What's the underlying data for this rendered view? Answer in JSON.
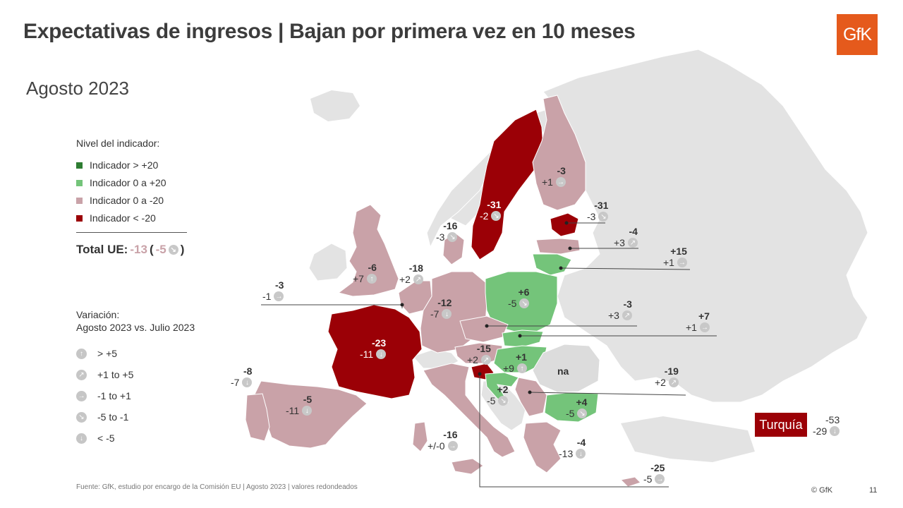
{
  "header": {
    "title": "Expectativas de ingresos | Bajan por primera vez en 10 meses",
    "subtitle": "Agosto 2023",
    "logo_text": "GfK"
  },
  "legend": {
    "heading": "Nivel del indicador:",
    "items": [
      {
        "label": "Indicador > +20",
        "color": "#2e7d32"
      },
      {
        "label": "Indicador 0 a +20",
        "color": "#74c47a"
      },
      {
        "label": "Indicador 0 a -20",
        "color": "#c9a2a8"
      },
      {
        "label": "Indicador < -20",
        "color": "#9b0006"
      }
    ],
    "total_label": "Total UE:",
    "total_value": "-13",
    "total_change": "-5",
    "total_open": "(",
    "total_close": ")"
  },
  "variation": {
    "heading": "Variación:",
    "subheading": "Agosto 2023 vs. Julio 2023",
    "items": [
      {
        "label": "> +5",
        "icon": "arrow-up-icon"
      },
      {
        "label": "+1 to +5",
        "icon": "arrow-up-right-icon"
      },
      {
        "label": "-1 to +1",
        "icon": "arrow-right-icon"
      },
      {
        "label": "-5 to -1",
        "icon": "arrow-down-right-icon"
      },
      {
        "label": "< -5",
        "icon": "arrow-down-icon"
      }
    ]
  },
  "countries": {
    "uk": {
      "value": "-6",
      "change": "+7"
    },
    "ireland_lux": {
      "value": "-3",
      "change": "-1"
    },
    "france": {
      "value": "-23",
      "change": "-11"
    },
    "spain": {
      "value": "-5",
      "change": "-11"
    },
    "portugal": {
      "value": "-8",
      "change": "-7"
    },
    "netherlands": {
      "value": "-18",
      "change": "+2"
    },
    "germany": {
      "value": "-12",
      "change": "-7"
    },
    "denmark": {
      "value": "-16",
      "change": "-3"
    },
    "sweden": {
      "value": "-31",
      "change": "-2"
    },
    "finland": {
      "value": "-3",
      "change": "+1"
    },
    "estonia": {
      "value": "-31",
      "change": "-3"
    },
    "latvia": {
      "value": "-4",
      "change": "+3"
    },
    "lithuania": {
      "value": "+15",
      "change": "+1"
    },
    "poland": {
      "value": "+6",
      "change": "-5"
    },
    "czechia": {
      "value": "-3",
      "change": "+3"
    },
    "slovakia": {
      "value": "+7",
      "change": "+1"
    },
    "austria": {
      "value": "-15",
      "change": "+2"
    },
    "hungary": {
      "value": "+1",
      "change": "+9"
    },
    "romania": {
      "value": "na"
    },
    "croatia": {
      "value": "+2",
      "change": "-5"
    },
    "serbia": {
      "value": "-19",
      "change": "+2"
    },
    "bulgaria": {
      "value": "+4",
      "change": "-5"
    },
    "italy": {
      "value": "-16",
      "change": "+/-0"
    },
    "greece": {
      "value": "-4",
      "change": "-13"
    },
    "cyprus": {
      "value": "-25",
      "change": "-5"
    },
    "turkey": {
      "label": "Turquía",
      "value": "-53",
      "change": "-29"
    }
  },
  "footer": {
    "source": "Fuente: GfK, estudio por encargo de la Comisión EU | Agosto 2023 | valores redondeados",
    "copyright": "© GfK",
    "page": "11"
  }
}
